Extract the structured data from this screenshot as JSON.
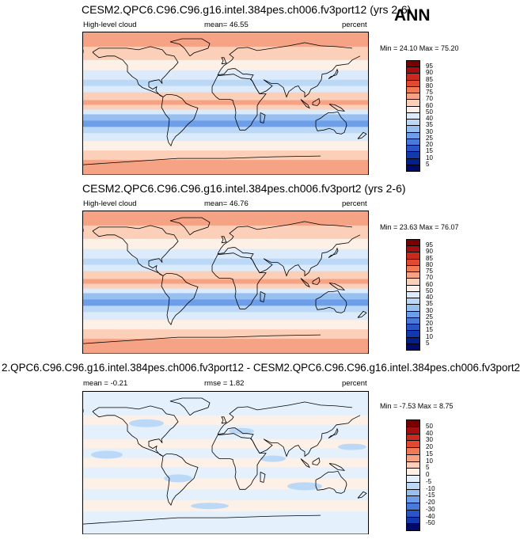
{
  "season": "ANN",
  "panels": [
    {
      "title": "CESM2.QPC6.C96.C96.g16.intel.384pes.ch006.fv3port12 (yrs 2-6)",
      "left_label": "High-level cloud",
      "center_label": "mean=  46.55",
      "right_label": "percent",
      "minmax": "Min =  24.10 Max =  75.20",
      "colorbar_labels": [
        "95",
        "90",
        "85",
        "80",
        "75",
        "70",
        "60",
        "50",
        "40",
        "35",
        "30",
        "25",
        "20",
        "15",
        "10",
        "5"
      ]
    },
    {
      "title": "CESM2.QPC6.C96.C96.g16.intel.384pes.ch006.fv3port2 (yrs 2-6)",
      "left_label": "High-level cloud",
      "center_label": "mean=  46.76",
      "right_label": "percent",
      "minmax": "Min =  23.63 Max =  76.07",
      "colorbar_labels": [
        "95",
        "90",
        "85",
        "80",
        "75",
        "70",
        "60",
        "50",
        "40",
        "35",
        "30",
        "25",
        "20",
        "15",
        "10",
        "5"
      ]
    },
    {
      "title": "2.QPC6.C96.C96.g16.intel.384pes.ch006.fv3port12 - CESM2.QPC6.C96.C96.g16.intel.384pes.ch006.fv3port2",
      "left_label": "mean =  -0.21",
      "center_label": "rmse =   1.82",
      "right_label": "percent",
      "minmax": "Min =  -7.53 Max =   8.75",
      "colorbar_labels": [
        "50",
        "40",
        "30",
        "20",
        "15",
        "10",
        "5",
        "0",
        "-5",
        "-10",
        "-15",
        "-20",
        "-30",
        "-40",
        "-50"
      ]
    }
  ],
  "colors": {
    "abs_scale": [
      "#7a0000",
      "#a30f0f",
      "#c92a1e",
      "#e04a30",
      "#ef7a55",
      "#f6a284",
      "#fbcfb8",
      "#fdf0e6",
      "#dcebfb",
      "#bcd8f7",
      "#97c0f1",
      "#6d9eea",
      "#4a7ad9",
      "#2b55c7",
      "#123aae",
      "#031f8e",
      "#000a6b"
    ],
    "diff_scale": [
      "#7a0000",
      "#a30f0f",
      "#c92a1e",
      "#e04a30",
      "#ef7a55",
      "#f6a284",
      "#fbcfb8",
      "#fdf0e6",
      "#e4f0fc",
      "#bcd8f7",
      "#97c0f1",
      "#6d9eea",
      "#4a7ad9",
      "#2b55c7",
      "#123aae",
      "#000a6b"
    ]
  }
}
